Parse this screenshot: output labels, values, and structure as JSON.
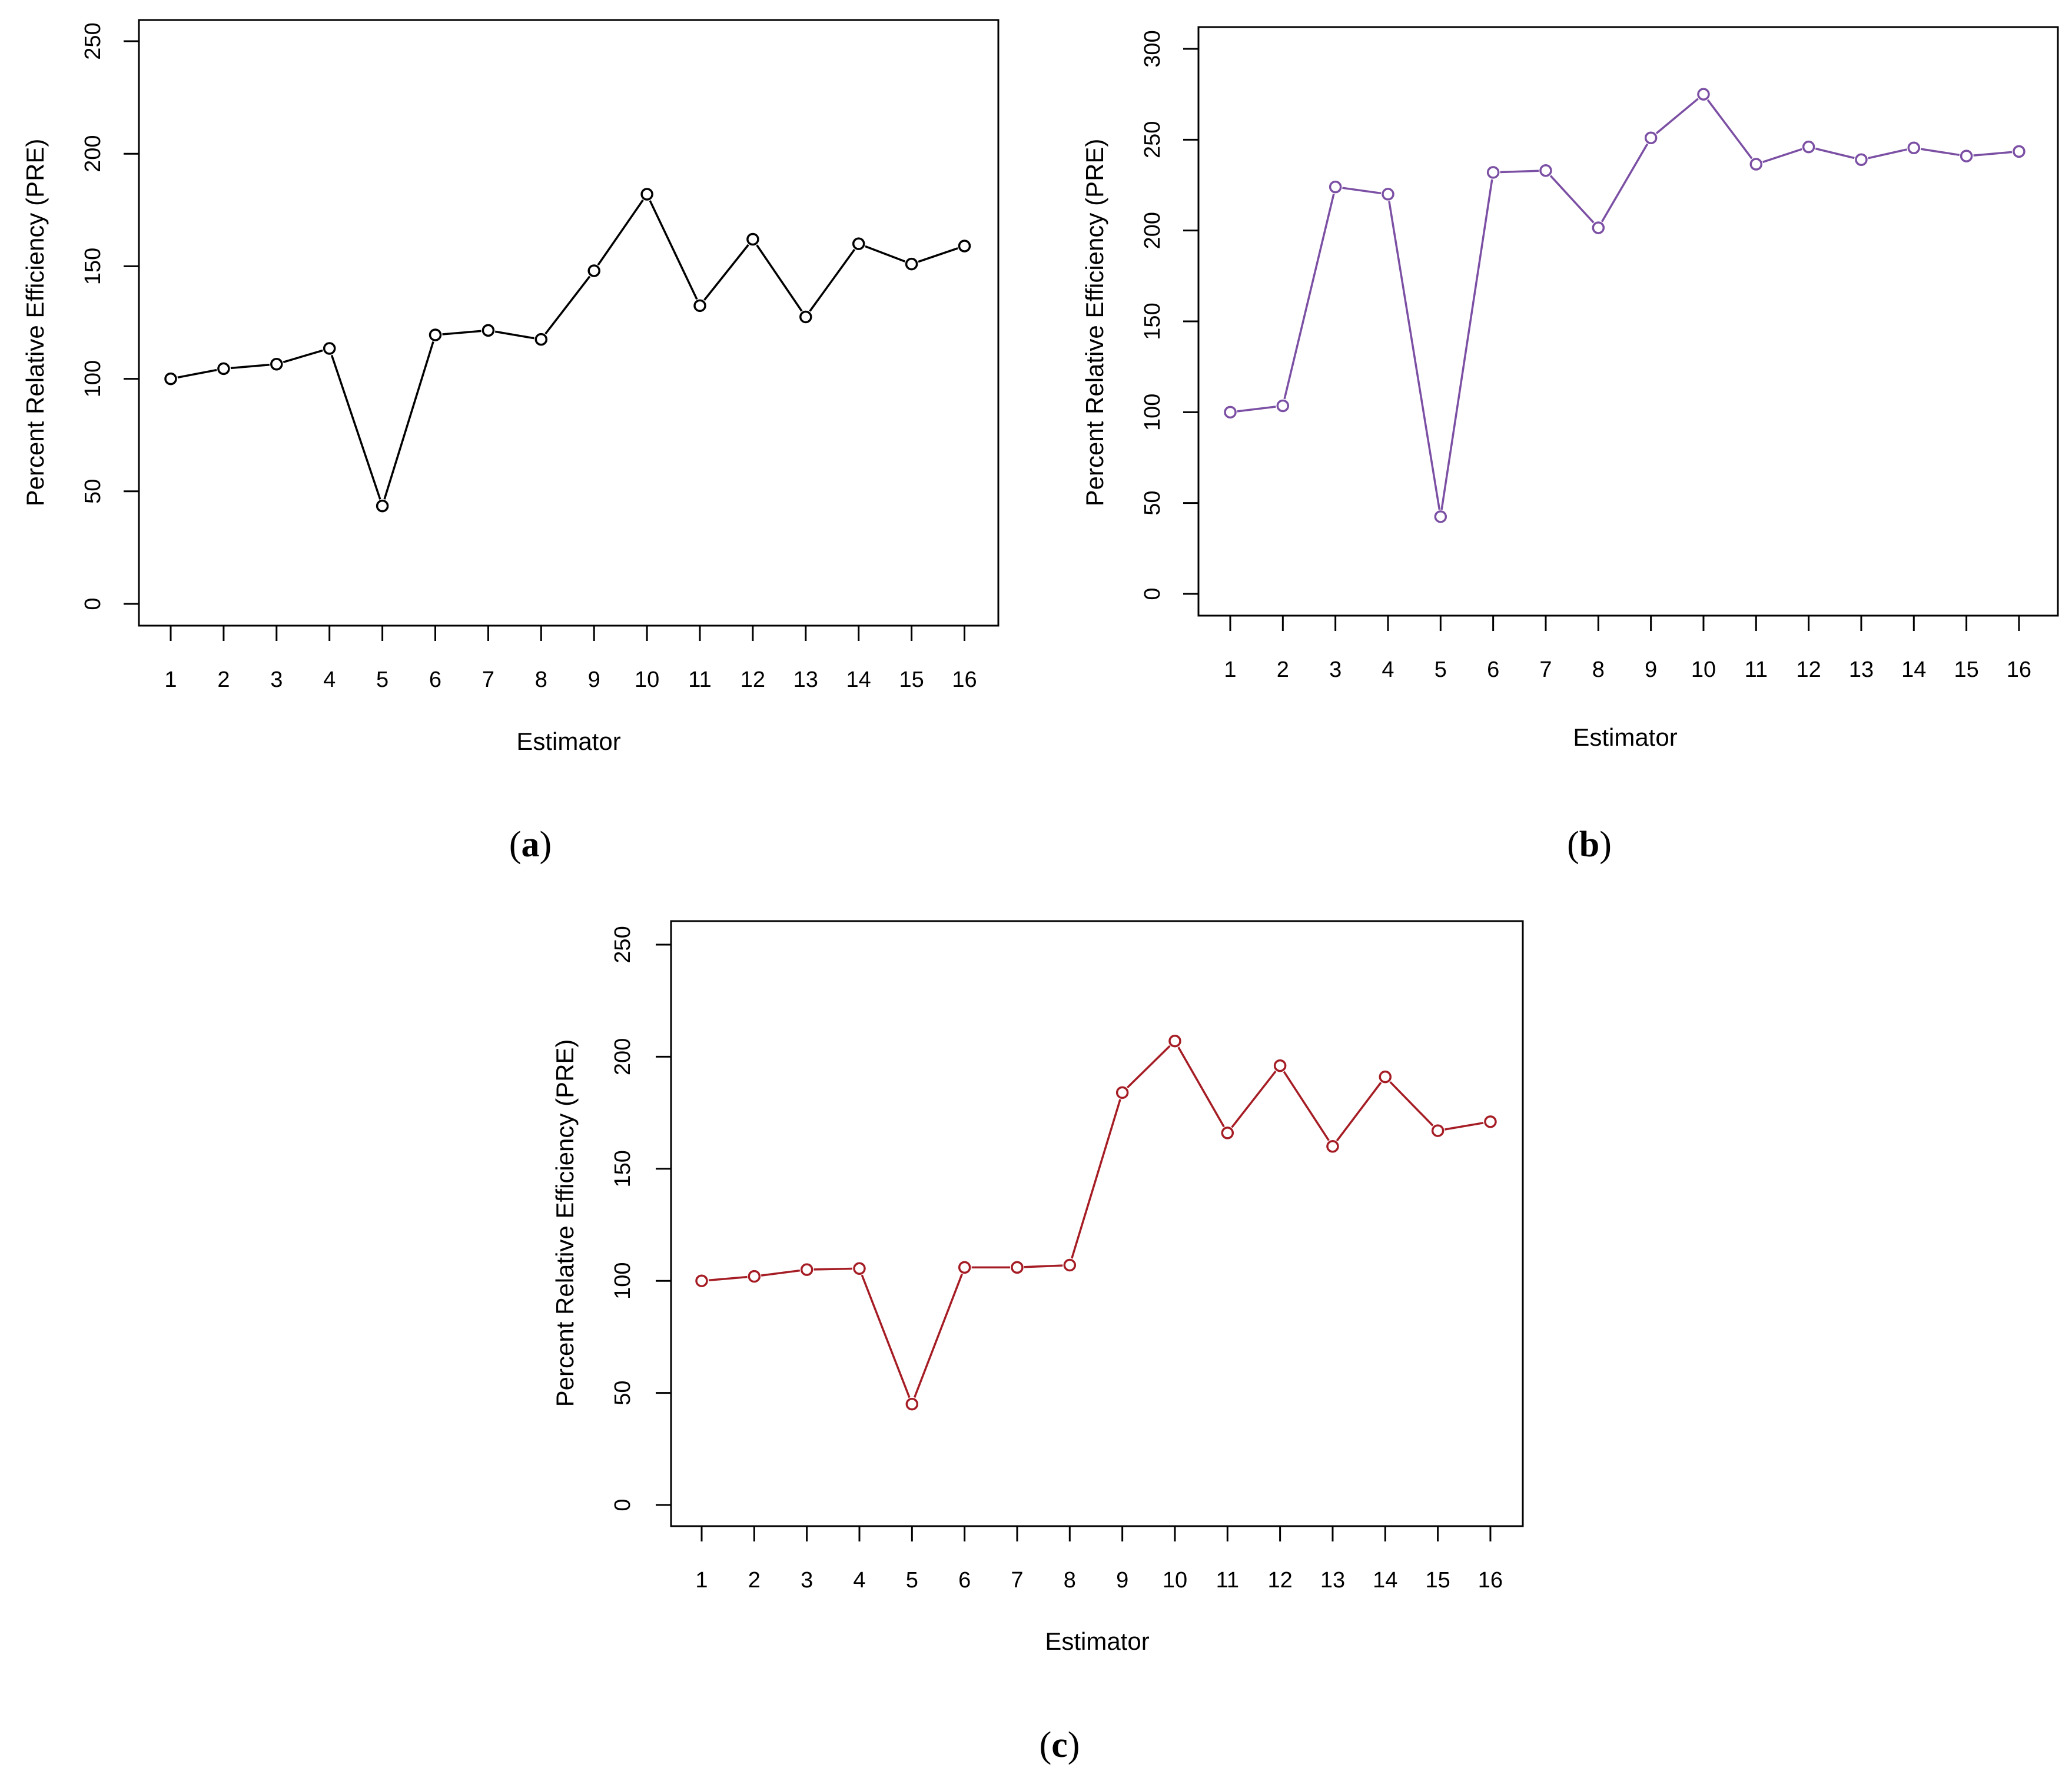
{
  "chart_data": [
    {
      "id": "a",
      "type": "line",
      "caption_letter": "a",
      "xlabel": "Estimator",
      "ylabel": "Percent Relative Efficiency (PRE)",
      "ylim": [
        0,
        250
      ],
      "yticks": [
        0,
        50,
        100,
        150,
        200,
        250
      ],
      "categories": [
        "1",
        "2",
        "3",
        "4",
        "5",
        "6",
        "7",
        "8",
        "9",
        "10",
        "11",
        "12",
        "13",
        "14",
        "15",
        "16"
      ],
      "values": [
        100,
        104.5,
        106.5,
        113.5,
        43.5,
        119.5,
        121.5,
        117.5,
        148,
        182,
        132.5,
        162,
        127.5,
        160,
        151,
        159
      ],
      "color": "#000000"
    },
    {
      "id": "b",
      "type": "line",
      "caption_letter": "b",
      "xlabel": "Estimator",
      "ylabel": "Percent Relative Efficiency (PRE)",
      "ylim": [
        0,
        300
      ],
      "yticks": [
        0,
        50,
        100,
        150,
        200,
        250,
        300
      ],
      "categories": [
        "1",
        "2",
        "3",
        "4",
        "5",
        "6",
        "7",
        "8",
        "9",
        "10",
        "11",
        "12",
        "13",
        "14",
        "15",
        "16"
      ],
      "values": [
        100,
        103.5,
        224,
        220,
        42.5,
        232,
        233,
        201.5,
        251,
        275,
        236.5,
        246,
        239,
        245.5,
        241,
        243.5
      ],
      "color": "#7b4fa3"
    },
    {
      "id": "c",
      "type": "line",
      "caption_letter": "c",
      "xlabel": "Estimator",
      "ylabel": "Percent Relative Efficiency (PRE)",
      "ylim": [
        0,
        250
      ],
      "yticks": [
        0,
        50,
        100,
        150,
        200,
        250
      ],
      "categories": [
        "1",
        "2",
        "3",
        "4",
        "5",
        "6",
        "7",
        "8",
        "9",
        "10",
        "11",
        "12",
        "13",
        "14",
        "15",
        "16"
      ],
      "values": [
        100,
        102,
        105,
        105.5,
        45,
        106,
        106,
        107,
        184,
        207,
        166,
        196,
        160,
        191,
        167,
        171
      ],
      "color": "#a51c24"
    }
  ]
}
